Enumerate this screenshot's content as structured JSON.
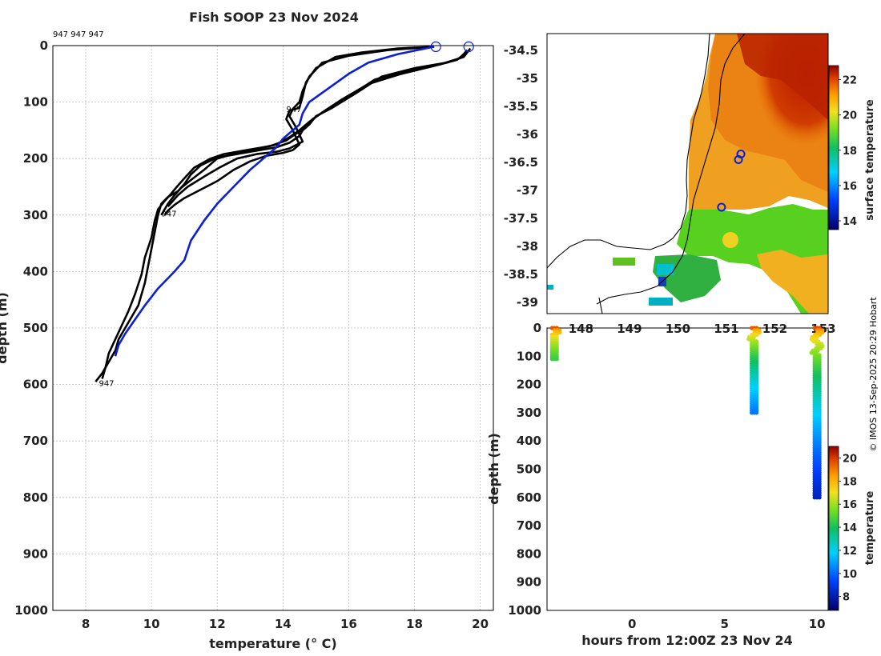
{
  "title": "Fish SOOP 23 Nov 2024",
  "credit": "© IMOS 13-Sep-2025 20:29 Hobart",
  "colors": {
    "profile": "#000000",
    "highlight": "#0a1fd6",
    "land": "#ffffff"
  },
  "chart_data": [
    {
      "type": "line",
      "name": "temperature-depth-profiles",
      "xlabel": "temperature (° C)",
      "ylabel": "depth (m)",
      "xlim": [
        7,
        20.4
      ],
      "ylim": [
        1000,
        0
      ],
      "xticks": [
        "8",
        "10",
        "12",
        "14",
        "16",
        "18",
        "20"
      ],
      "yticks": [
        "0",
        "100",
        "200",
        "300",
        "400",
        "500",
        "600",
        "700",
        "800",
        "900",
        "1000"
      ],
      "top_label": "947 947 947",
      "profile_labels": [
        {
          "text": "947",
          "x": 14.1,
          "y": 112
        },
        {
          "text": "947",
          "x": 10.3,
          "y": 297
        },
        {
          "text": "947",
          "x": 8.4,
          "y": 597
        }
      ],
      "surface_markers": [
        {
          "x": 18.65,
          "y": 2
        },
        {
          "x": 19.65,
          "y": 2
        }
      ],
      "series": [
        {
          "name": "cast-1",
          "color": "black",
          "x": [
            19.7,
            19.5,
            19.0,
            18.0,
            17.0,
            16.2,
            15.5,
            15.0,
            14.8,
            14.6,
            14.5,
            14.2,
            13.8,
            13.0,
            12.5,
            12.0,
            11.5,
            11.2,
            11.0,
            10.8,
            10.5,
            10.3,
            10.2,
            10.1,
            10.0,
            9.9,
            9.8,
            9.6,
            9.4,
            9.2,
            9.0,
            8.9,
            8.7,
            8.5,
            8.3
          ],
          "y": [
            5,
            20,
            30,
            40,
            55,
            85,
            110,
            125,
            140,
            150,
            160,
            172,
            180,
            188,
            193,
            198,
            212,
            228,
            245,
            258,
            268,
            280,
            300,
            330,
            360,
            390,
            420,
            460,
            480,
            500,
            520,
            540,
            560,
            580,
            595
          ]
        },
        {
          "name": "cast-2",
          "color": "black",
          "x": [
            19.6,
            19.4,
            18.8,
            17.8,
            16.8,
            16.0,
            15.3,
            14.9,
            14.7,
            14.4,
            14.1,
            13.6,
            12.8,
            12.2,
            11.8,
            11.3,
            11.0,
            10.8,
            10.6,
            10.4,
            10.2,
            10.1,
            10.0,
            9.8,
            9.7,
            9.5,
            9.3,
            9.1,
            8.9,
            8.7,
            8.6,
            8.5
          ],
          "y": [
            8,
            22,
            33,
            45,
            60,
            90,
            115,
            130,
            145,
            156,
            168,
            178,
            186,
            192,
            200,
            216,
            235,
            248,
            262,
            275,
            290,
            310,
            340,
            375,
            405,
            440,
            470,
            495,
            520,
            545,
            570,
            590
          ]
        },
        {
          "name": "cast-3",
          "color": "black",
          "x": [
            19.6,
            19.3,
            18.6,
            17.6,
            16.6,
            15.8,
            15.2,
            14.8,
            14.5,
            14.2,
            13.8,
            13.2,
            12.6,
            12.0,
            11.6,
            11.2,
            10.9,
            10.7,
            10.5,
            10.3
          ],
          "y": [
            10,
            25,
            36,
            50,
            68,
            95,
            118,
            135,
            150,
            162,
            175,
            183,
            190,
            200,
            220,
            238,
            252,
            265,
            280,
            300
          ]
        },
        {
          "name": "cast-4",
          "color": "black",
          "x": [
            18.6,
            17.5,
            16.4,
            15.6,
            15.0,
            14.7,
            14.6,
            14.5,
            14.2,
            14.1,
            14.3,
            14.5,
            14.3,
            14.0,
            13.5,
            13.0,
            12.5,
            12.0,
            11.5,
            11.0,
            10.7,
            10.5,
            10.4
          ],
          "y": [
            2,
            5,
            12,
            20,
            40,
            65,
            90,
            110,
            115,
            130,
            150,
            175,
            185,
            190,
            195,
            205,
            220,
            240,
            255,
            270,
            282,
            292,
            300
          ]
        },
        {
          "name": "cast-5",
          "color": "black",
          "x": [
            18.6,
            17.2,
            16.0,
            15.2,
            14.8,
            14.6,
            14.5,
            14.3,
            14.2,
            14.4,
            14.6,
            14.2,
            13.8,
            13.2,
            12.6,
            12.1,
            11.6,
            11.1,
            10.8,
            10.5
          ],
          "y": [
            2,
            8,
            18,
            30,
            55,
            80,
            100,
            112,
            125,
            145,
            170,
            182,
            188,
            192,
            200,
            215,
            232,
            250,
            265,
            285
          ]
        },
        {
          "name": "cast-highlight",
          "color": "blue",
          "x": [
            18.6,
            17.5,
            16.6,
            16.0,
            15.4,
            14.8,
            14.6,
            14.5,
            14.2,
            14.0,
            13.8,
            13.5,
            13.2,
            13.0,
            12.5,
            12.0,
            11.6,
            11.2,
            11.0,
            10.7,
            10.2,
            9.8,
            9.5,
            9.2,
            9.0,
            8.9
          ],
          "y": [
            2,
            15,
            30,
            50,
            75,
            100,
            120,
            140,
            155,
            165,
            180,
            195,
            210,
            220,
            250,
            280,
            310,
            345,
            380,
            400,
            430,
            460,
            485,
            510,
            530,
            550
          ]
        }
      ]
    },
    {
      "type": "heatmap",
      "name": "sea-surface-temperature-map",
      "colorbar_label": "surface temperature",
      "yticks": [
        "-34.5",
        "-35",
        "-35.5",
        "-36",
        "-36.5",
        "-37",
        "-37.5",
        "-38",
        "-38.5",
        "-39"
      ],
      "xticks": [
        "148",
        "149",
        "150",
        "151",
        "152",
        "153"
      ],
      "colorbar_ticks": [
        "22",
        "20",
        "18",
        "16",
        "14"
      ],
      "colorbar_range": [
        13.5,
        22.8
      ],
      "track_points": [
        {
          "lon": 151.3,
          "lat": -36.35
        },
        {
          "lon": 151.25,
          "lat": -36.45
        },
        {
          "lon": 150.9,
          "lat": -37.3
        }
      ]
    },
    {
      "type": "scatter",
      "name": "depth-time-section",
      "xlabel": "hours from 12:00Z 23 Nov 24",
      "ylabel": "depth (m)",
      "xlim": [
        -4.6,
        10.6
      ],
      "ylim": [
        1000,
        0
      ],
      "xticks": [
        "0",
        "5",
        "10"
      ],
      "yticks": [
        "0",
        "100",
        "200",
        "300",
        "400",
        "500",
        "600",
        "700",
        "800",
        "900",
        "1000"
      ],
      "colorbar_label": "temperature",
      "colorbar_ticks": [
        "20",
        "18",
        "16",
        "14",
        "12",
        "10",
        "8"
      ],
      "colorbar_range": [
        6.8,
        21
      ],
      "casts": [
        {
          "hour": -4.2,
          "max_depth": 110,
          "t_top": 19.6,
          "t_bottom": 14.6
        },
        {
          "hour": 6.6,
          "max_depth": 300,
          "t_top": 19.5,
          "t_bottom": 10.3
        },
        {
          "hour": 10.0,
          "max_depth": 600,
          "t_top": 19.7,
          "t_bottom": 8.3
        }
      ]
    }
  ]
}
